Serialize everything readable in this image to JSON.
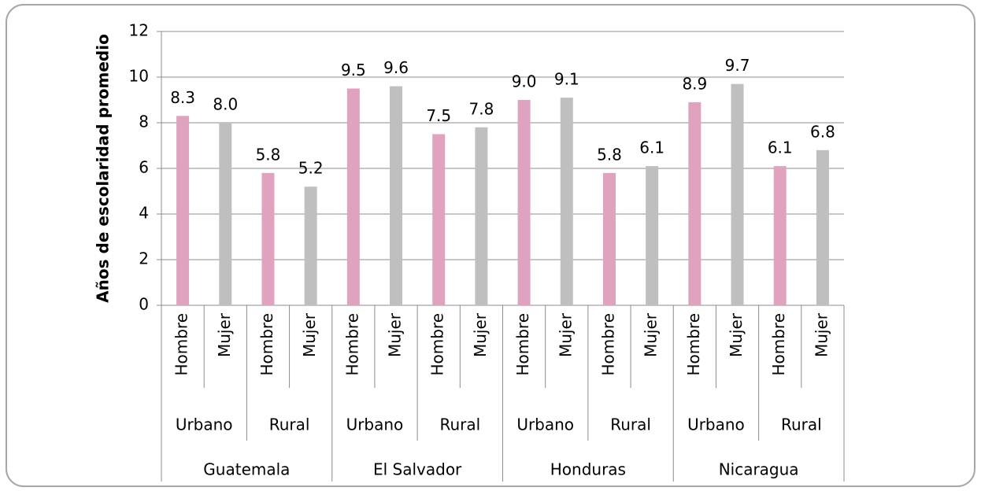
{
  "chart_data": {
    "type": "bar",
    "y_label": "Años de escolaridad promedio",
    "categories": [
      "Hombre",
      "Mujer",
      "Hombre",
      "Mujer",
      "Hombre",
      "Mujer",
      "Hombre",
      "Mujer",
      "Hombre",
      "Mujer",
      "Hombre",
      "Mujer",
      "Hombre",
      "Mujer",
      "Hombre",
      "Mujer"
    ],
    "category_level2": [
      "Urbano",
      "Rural",
      "Urbano",
      "Rural",
      "Urbano",
      "Rural",
      "Urbano",
      "Rural"
    ],
    "category_level3": [
      "Guatemala",
      "El Salvador",
      "Honduras",
      "Nicaragua"
    ],
    "values": [
      8.3,
      8.0,
      5.8,
      5.2,
      9.5,
      9.6,
      7.5,
      7.8,
      9.0,
      9.1,
      5.8,
      6.1,
      8.9,
      9.7,
      6.1,
      6.8
    ],
    "value_labels": [
      "8.3",
      "8.0",
      "5.8",
      "5.2",
      "9.5",
      "9.6",
      "7.5",
      "7.8",
      "9.0",
      "9.1",
      "5.8",
      "6.1",
      "8.9",
      "9.7",
      "6.1",
      "6.8"
    ],
    "colors": [
      "#e0a3bf",
      "#bfbfbf",
      "#e0a3bf",
      "#bfbfbf",
      "#e0a3bf",
      "#bfbfbf",
      "#e0a3bf",
      "#bfbfbf",
      "#e0a3bf",
      "#bfbfbf",
      "#e0a3bf",
      "#bfbfbf",
      "#e0a3bf",
      "#bfbfbf",
      "#e0a3bf",
      "#bfbfbf"
    ],
    "ylim": [
      0,
      12
    ],
    "yticks": [
      0,
      2,
      4,
      6,
      8,
      10,
      12
    ],
    "grid": true
  }
}
